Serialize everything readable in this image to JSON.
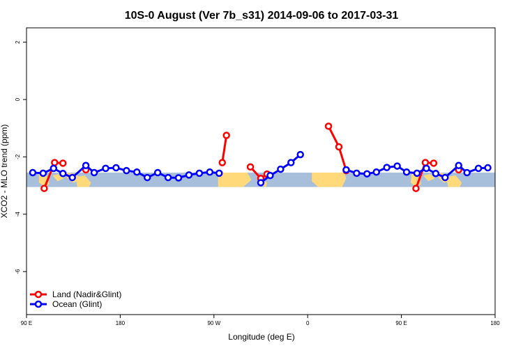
{
  "chart_data": {
    "type": "line",
    "title": "10S-0 August (Ver 7b_s31)   2014-09-06 to 2017-03-31",
    "xlabel": "Longitude (deg E)",
    "ylabel": "XCO2 - MLO trend (ppm)",
    "xlim": [
      90,
      540
    ],
    "ylim": [
      -7.5,
      2.5
    ],
    "x_ticks": [
      {
        "value": 90,
        "label": "90 E"
      },
      {
        "value": 180,
        "label": "180"
      },
      {
        "value": 270,
        "label": "90 W"
      },
      {
        "value": 360,
        "label": "0"
      },
      {
        "value": 450,
        "label": "90 E"
      },
      {
        "value": 540,
        "label": "180"
      }
    ],
    "y_ticks": [
      {
        "value": 2,
        "label": "2"
      },
      {
        "value": 0,
        "label": "0"
      },
      {
        "value": -2,
        "label": "-2"
      },
      {
        "value": -4,
        "label": "-4"
      },
      {
        "value": -6,
        "label": "-6"
      }
    ],
    "grid": false,
    "legend_position": "bottom-left",
    "latitude_band": {
      "y_from": -3.05,
      "y_to": -2.55,
      "ocean_color": "#a8bfdc",
      "land_color": "#ffd97a"
    },
    "series": [
      {
        "name": "Land (Nadir&Glint)",
        "color": "#ff0000",
        "segments": [
          [
            [
              107,
              -3.1
            ],
            [
              117,
              -2.2
            ],
            [
              125,
              -2.22
            ]
          ],
          [
            [
              147,
              -2.45
            ]
          ],
          [
            [
              278,
              -2.2
            ],
            [
              282,
              -1.25
            ]
          ],
          [
            [
              305,
              -2.35
            ],
            [
              315,
              -2.75
            ],
            [
              321,
              -2.6
            ]
          ],
          [
            [
              380,
              -0.93
            ],
            [
              390,
              -1.65
            ],
            [
              397,
              -2.48
            ]
          ],
          [
            [
              464,
              -3.1
            ],
            [
              473,
              -2.2
            ],
            [
              481,
              -2.22
            ]
          ],
          [
            [
              505,
              -2.45
            ]
          ]
        ]
      },
      {
        "name": "Ocean (Glint)",
        "color": "#0000ff",
        "segments": [
          [
            [
              96,
              -2.55
            ],
            [
              106,
              -2.57
            ],
            [
              116,
              -2.4
            ],
            [
              125,
              -2.58
            ],
            [
              134,
              -2.72
            ],
            [
              147,
              -2.3
            ],
            [
              155,
              -2.55
            ],
            [
              166,
              -2.4
            ],
            [
              176,
              -2.38
            ],
            [
              186,
              -2.48
            ],
            [
              196,
              -2.53
            ],
            [
              206,
              -2.72
            ],
            [
              216,
              -2.55
            ],
            [
              226,
              -2.72
            ],
            [
              236,
              -2.73
            ],
            [
              246,
              -2.63
            ],
            [
              256,
              -2.57
            ],
            [
              266,
              -2.53
            ],
            [
              275,
              -2.57
            ]
          ],
          [
            [
              315,
              -2.9
            ],
            [
              324,
              -2.65
            ],
            [
              334,
              -2.43
            ],
            [
              344,
              -2.2
            ],
            [
              353,
              -1.92
            ]
          ],
          [
            [
              397,
              -2.45
            ],
            [
              407,
              -2.57
            ],
            [
              417,
              -2.59
            ],
            [
              426,
              -2.53
            ],
            [
              436,
              -2.37
            ],
            [
              446,
              -2.32
            ],
            [
              455,
              -2.53
            ],
            [
              465,
              -2.57
            ],
            [
              474,
              -2.4
            ],
            [
              483,
              -2.58
            ],
            [
              492,
              -2.72
            ],
            [
              505,
              -2.3
            ],
            [
              513,
              -2.55
            ],
            [
              524,
              -2.4
            ],
            [
              533,
              -2.38
            ]
          ]
        ]
      }
    ]
  }
}
